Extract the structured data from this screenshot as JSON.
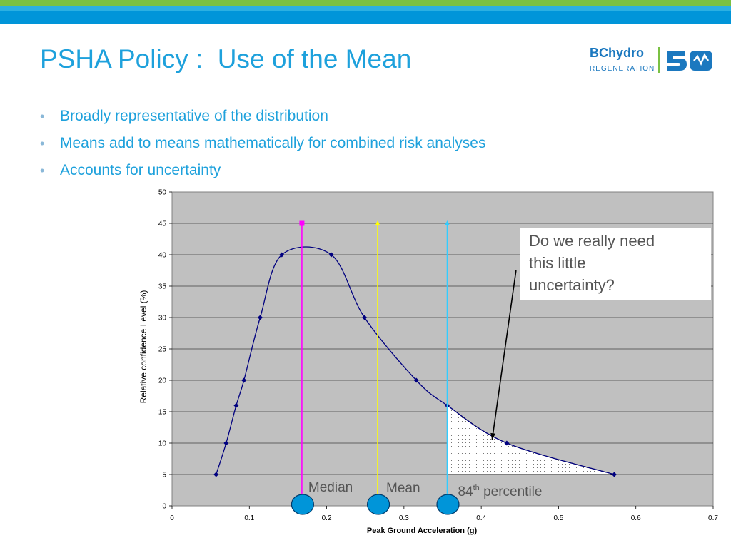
{
  "slide": {
    "title": "PSHA Policy :  Use of the Mean",
    "bullets": [
      "Broadly representative of the distribution",
      "Means add to means mathematically for combined risk analyses",
      "Accounts for uncertainty"
    ],
    "logo": {
      "line1": "BChydro",
      "line2": "REGENERATION",
      "mark": "50"
    }
  },
  "colors": {
    "title": "#1ea1dc",
    "header_green": "#7ac143",
    "header_blue": "#0095d9",
    "plot_bg": "#c0c0c0",
    "curve": "#00007f",
    "median_line": "#ff00ff",
    "mean_line": "#ffff00",
    "p84_line": "#33ccff",
    "circle": "#0095d9"
  },
  "chart_data": {
    "type": "line",
    "xlabel": "Peak Ground Acceleration (g)",
    "ylabel": "Relative confidence Level (%)",
    "xlim": [
      0,
      0.7
    ],
    "ylim": [
      0,
      50
    ],
    "xticks": [
      "0",
      "0.1",
      "0.2",
      "0.3",
      "0.4",
      "0.5",
      "0.6",
      "0.7"
    ],
    "yticks": [
      "0",
      "5",
      "10",
      "15",
      "20",
      "25",
      "30",
      "35",
      "40",
      "45",
      "50"
    ],
    "grid": true,
    "x": [
      0.057,
      0.07,
      0.083,
      0.093,
      0.114,
      0.142,
      0.206,
      0.249,
      0.316,
      0.356,
      0.433,
      0.572
    ],
    "y": [
      5,
      10,
      16,
      20,
      30,
      40,
      40,
      30,
      20,
      16,
      10,
      5
    ],
    "vertical_lines": [
      {
        "label": "Median",
        "x": 0.168,
        "top": 45,
        "color": "#ff00ff",
        "marker": "square"
      },
      {
        "label": "Mean",
        "x": 0.266,
        "top": 45,
        "color": "#ffff00",
        "marker": "triangle"
      },
      {
        "label": "84",
        "label_sup": "th",
        "label_rest": " percentile",
        "x": 0.356,
        "top": 45,
        "color": "#33ccff",
        "marker": "triangle"
      }
    ],
    "shaded_region": {
      "x_from": 0.356,
      "x_to": 0.572,
      "description_pattern": "dots"
    },
    "annotation": {
      "lines": [
        "Do we really need",
        "this little",
        "uncertainty?"
      ],
      "arrow_from": [
        0.445,
        37.5
      ],
      "arrow_to": [
        0.414,
        10.5
      ]
    }
  }
}
